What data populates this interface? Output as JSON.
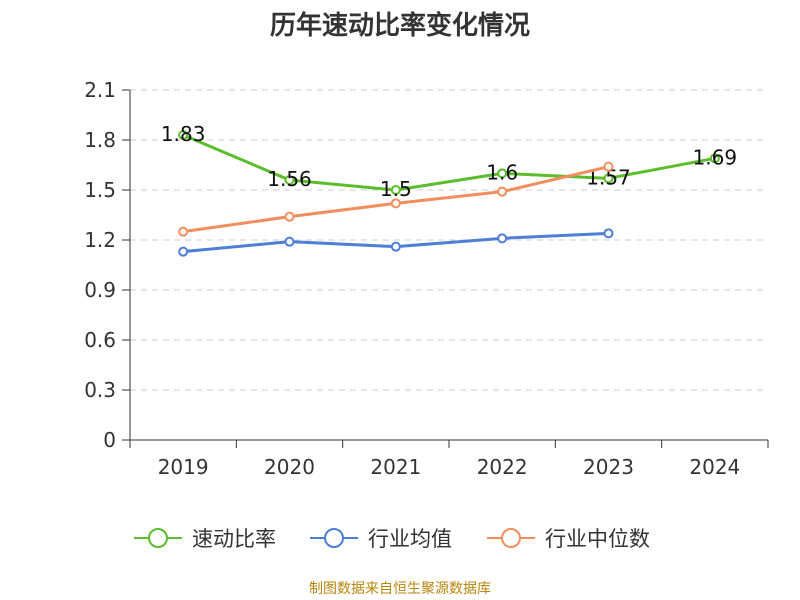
{
  "title": "历年速动比率变化情况",
  "footer": "制图数据来自恒生聚源数据库",
  "colors": {
    "速动比率": "#5cbd2c",
    "行业均值": "#4d7fd8",
    "行业中位数": "#f48d5e",
    "grid": "#cccccc",
    "axis": "#333333",
    "text": "#333333"
  },
  "chart_data": {
    "type": "line",
    "title": "历年速动比率变化情况",
    "categories": [
      "2019",
      "2020",
      "2021",
      "2022",
      "2023",
      "2024"
    ],
    "y_ticks": [
      "0",
      "0.3",
      "0.6",
      "0.9",
      "1.2",
      "1.5",
      "1.8",
      "2.1"
    ],
    "ylim": [
      0,
      2.1
    ],
    "grid": true,
    "legend_position": "bottom",
    "series": [
      {
        "name": "速动比率",
        "values": [
          1.83,
          1.56,
          1.5,
          1.6,
          1.57,
          1.69
        ],
        "labels": [
          "1.83",
          "1.56",
          "1.5",
          "1.6",
          "1.57",
          "1.69"
        ]
      },
      {
        "name": "行业均值",
        "values": [
          1.13,
          1.19,
          1.16,
          1.21,
          1.24,
          null
        ]
      },
      {
        "name": "行业中位数",
        "values": [
          1.25,
          1.34,
          1.42,
          1.49,
          1.64,
          null
        ]
      }
    ]
  }
}
